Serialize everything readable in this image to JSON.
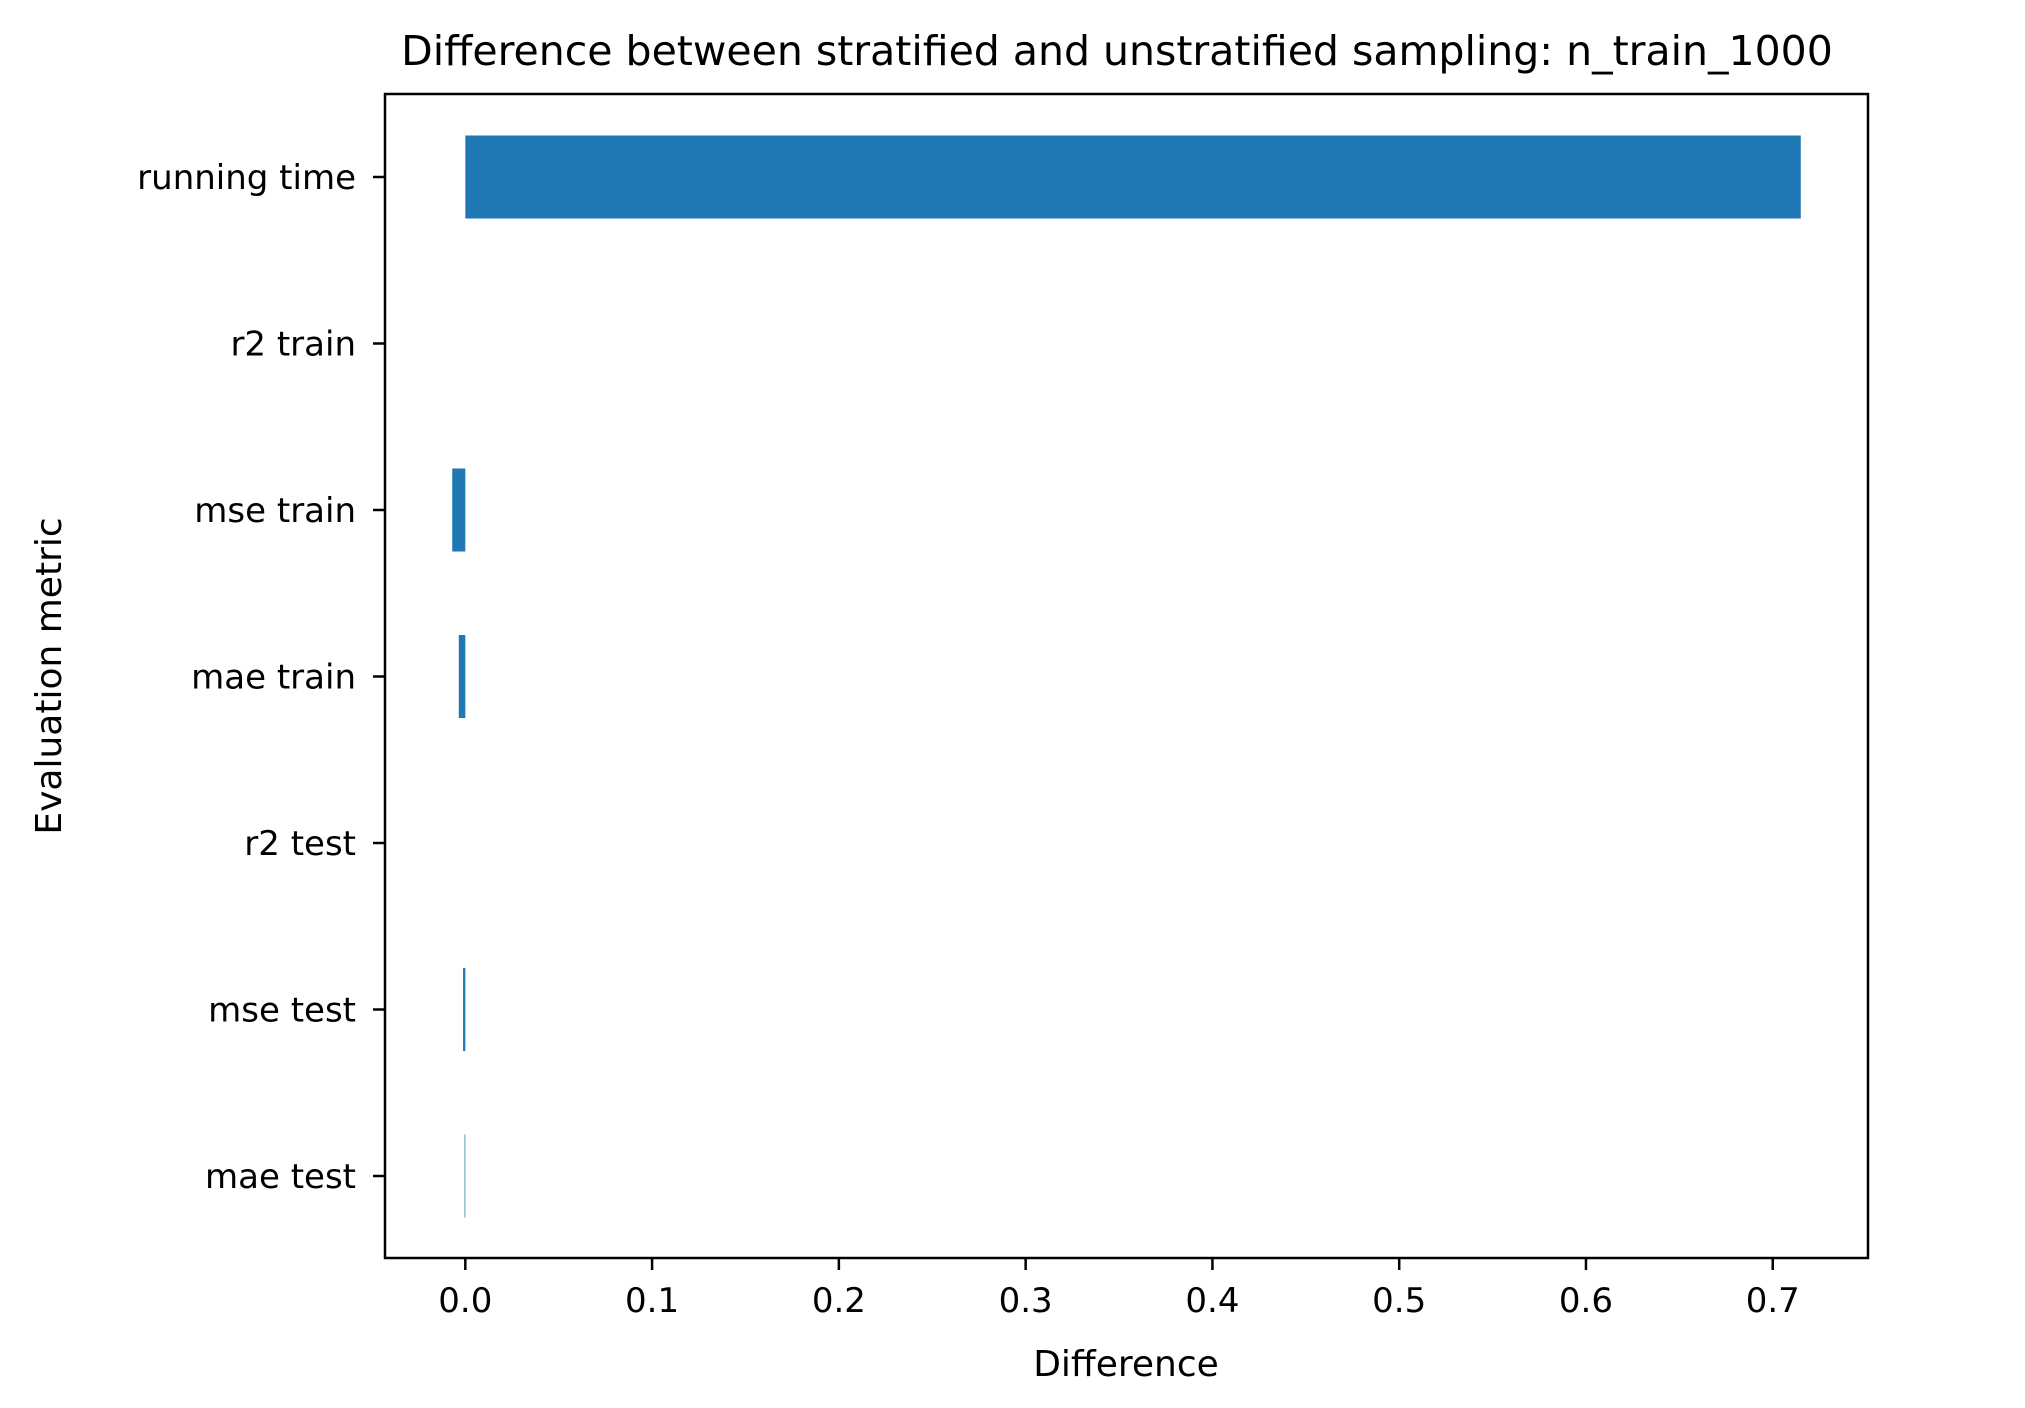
{
  "chart_data": {
    "type": "bar",
    "orientation": "horizontal",
    "title": "Difference between stratified and unstratified sampling: n_train_1000",
    "xlabel": "Difference",
    "ylabel": "Evaluation metric",
    "categories": [
      "running time",
      "r2 train",
      "mse train",
      "mae train",
      "r2 test",
      "mse test",
      "mae test"
    ],
    "values": [
      0.715,
      0.0,
      -0.007,
      -0.0035,
      0.0,
      -0.0012,
      -0.0004
    ],
    "xlim": [
      -0.043,
      0.751
    ],
    "xticks": [
      0.0,
      0.1,
      0.2,
      0.3,
      0.4,
      0.5,
      0.6,
      0.7
    ],
    "xtick_labels": [
      "0.0",
      "0.1",
      "0.2",
      "0.3",
      "0.4",
      "0.5",
      "0.6",
      "0.7"
    ],
    "grid": false,
    "colors": {
      "bar": "#1f77b4",
      "axis": "#000000",
      "background": "#ffffff"
    }
  }
}
